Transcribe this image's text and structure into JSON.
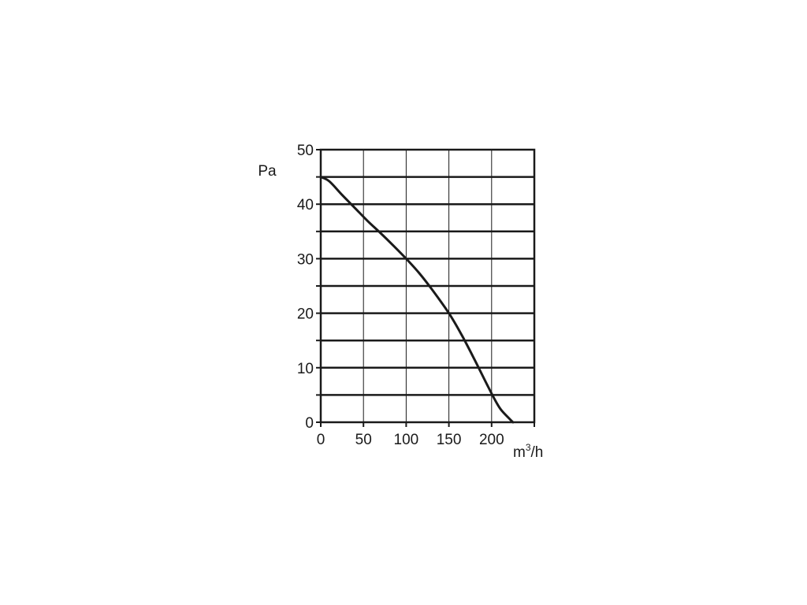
{
  "chart_data": {
    "type": "line",
    "title": "",
    "xlabel": {
      "base": "m",
      "sup": "3",
      "suffix": "/h"
    },
    "ylabel": "Pa",
    "xlim": [
      0,
      250
    ],
    "ylim": [
      0,
      50
    ],
    "x_ticks": [
      0,
      50,
      100,
      150,
      200
    ],
    "y_ticks": [
      0,
      10,
      20,
      30,
      40,
      50
    ],
    "x_grid": [
      0,
      50,
      100,
      150,
      200,
      250
    ],
    "y_grid": [
      0,
      5,
      10,
      15,
      20,
      25,
      30,
      35,
      40,
      45,
      50
    ],
    "grid": true,
    "legend": "none",
    "series": [
      {
        "x": [
          0,
          10,
          25,
          40,
          55,
          70,
          85,
          100,
          115,
          130,
          150,
          165,
          180,
          195,
          205,
          212,
          225
        ],
        "y": [
          45,
          44.2,
          41.7,
          39.3,
          36.9,
          34.7,
          32.4,
          30,
          27.4,
          24.4,
          20,
          16,
          11.5,
          6.8,
          3.8,
          2.1,
          0
        ]
      }
    ]
  }
}
